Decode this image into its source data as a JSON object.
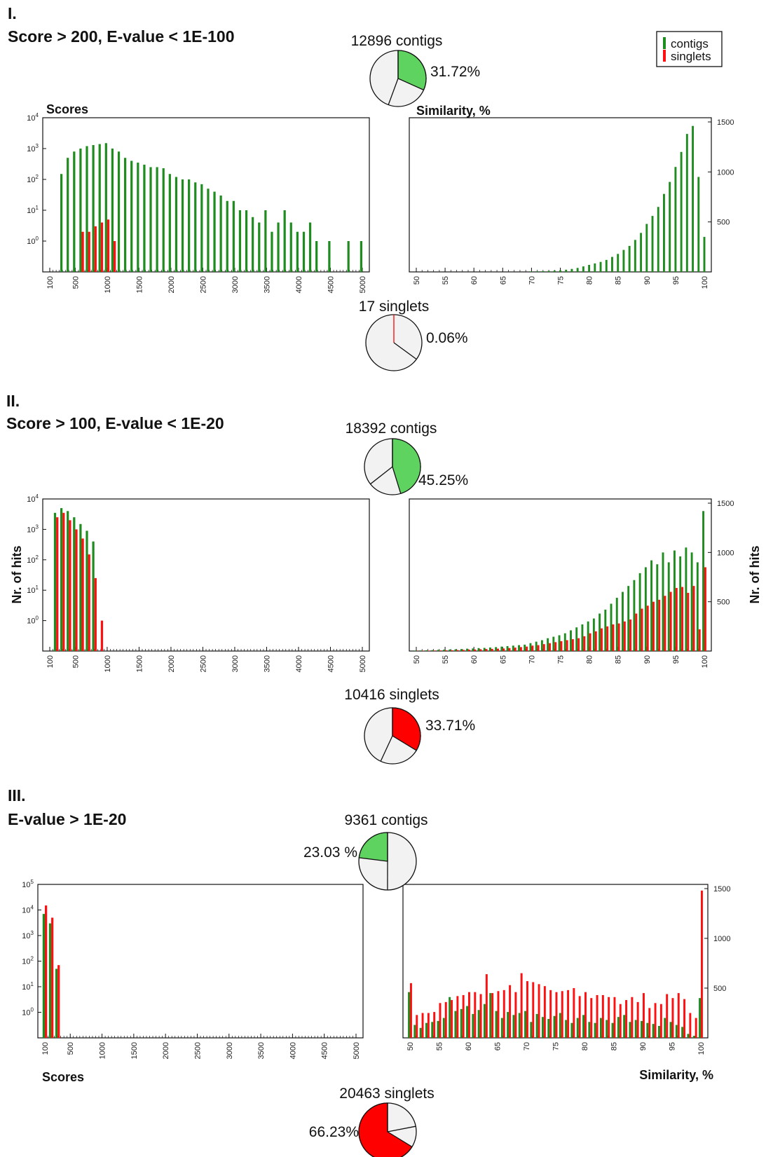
{
  "legend": {
    "items": [
      {
        "label": "contigs",
        "color": "#1f8c1f"
      },
      {
        "label": "singlets",
        "color": "#ff0f0f"
      }
    ]
  },
  "colors": {
    "contigs_bar": "#1f8c1f",
    "singlets_bar": "#ff0f0f",
    "pie_contigs": "#5fd35f",
    "pie_singlets": "#ff0000",
    "pie_rest": "#f2f2f2"
  },
  "sections": [
    {
      "id": "I",
      "label": "I.",
      "condition": "Score > 200, E-value < 1E-100",
      "contigs_pie": {
        "caption": "12896 contigs",
        "percent": 31.72,
        "label": "31.72%"
      },
      "singlets_pie": {
        "caption": "17 singlets",
        "percent": 0.06,
        "label": "0.06%"
      }
    },
    {
      "id": "II",
      "label": "II.",
      "condition": "Score > 100, E-value < 1E-20",
      "contigs_pie": {
        "caption": "18392 contigs",
        "percent": 45.25,
        "label": "45.25%"
      },
      "singlets_pie": {
        "caption": "10416 singlets",
        "percent": 33.71,
        "label": "33.71%"
      }
    },
    {
      "id": "III",
      "label": "III.",
      "condition": "E-value > 1E-20",
      "contigs_pie": {
        "caption": "9361 contigs",
        "percent": 23.03,
        "label": "23.03 %"
      },
      "singlets_pie": {
        "caption": "20463 singlets",
        "percent": 66.23,
        "label": "66.23%"
      }
    }
  ],
  "chart_data": [
    {
      "id": "I-scores",
      "type": "bar",
      "title": "Scores",
      "xlabel": "",
      "ylabel": "",
      "yscale": "log",
      "ylim": [
        0.1,
        10000
      ],
      "xlim": [
        100,
        5000
      ],
      "xticks": [
        "100",
        "500",
        "1000",
        "1500",
        "2000",
        "2500",
        "3000",
        "3500",
        "4000",
        "4500",
        "5000"
      ],
      "ytick_exps": [
        "4",
        "3",
        "2",
        "1",
        "0"
      ],
      "series": [
        {
          "name": "contigs",
          "x": [
            300,
            400,
            500,
            600,
            700,
            800,
            900,
            1000,
            1100,
            1200,
            1300,
            1400,
            1500,
            1600,
            1700,
            1800,
            1900,
            2000,
            2100,
            2200,
            2300,
            2400,
            2500,
            2600,
            2700,
            2800,
            2900,
            3000,
            3100,
            3200,
            3300,
            3400,
            3500,
            3600,
            3700,
            3800,
            3900,
            4000,
            4100,
            4200,
            4300,
            4500,
            4800,
            5000
          ],
          "values": [
            150,
            500,
            800,
            1000,
            1200,
            1300,
            1400,
            1500,
            1000,
            800,
            500,
            400,
            350,
            300,
            250,
            250,
            230,
            150,
            120,
            100,
            100,
            80,
            70,
            50,
            40,
            30,
            20,
            20,
            10,
            10,
            6,
            4,
            10,
            2,
            4,
            10,
            4,
            2,
            2,
            4,
            1,
            1,
            1,
            1
          ]
        },
        {
          "name": "singlets",
          "x": [
            600,
            700,
            800,
            900,
            1000,
            1100
          ],
          "values": [
            2,
            2,
            3,
            4,
            5,
            1
          ]
        }
      ]
    },
    {
      "id": "I-similarity",
      "type": "bar",
      "title": "Similarity, %",
      "xlabel": "",
      "ylabel": "",
      "yscale": "linear",
      "ylim": [
        0,
        1500
      ],
      "xlim": [
        50,
        100
      ],
      "xticks": [
        "50",
        "55",
        "60",
        "65",
        "70",
        "75",
        "80",
        "85",
        "90",
        "95",
        "100"
      ],
      "yticks": [
        "500",
        "1000",
        "1500"
      ],
      "series": [
        {
          "name": "contigs",
          "x": [
            70,
            71,
            72,
            73,
            74,
            75,
            76,
            77,
            78,
            79,
            80,
            81,
            82,
            83,
            84,
            85,
            86,
            87,
            88,
            89,
            90,
            91,
            92,
            93,
            94,
            95,
            96,
            97,
            98,
            99,
            100
          ],
          "values": [
            4,
            6,
            8,
            10,
            14,
            16,
            22,
            30,
            40,
            55,
            70,
            85,
            100,
            120,
            150,
            180,
            220,
            260,
            320,
            390,
            480,
            560,
            650,
            780,
            900,
            1050,
            1200,
            1380,
            1460,
            950,
            350
          ]
        },
        {
          "name": "singlets",
          "x": [],
          "values": []
        }
      ]
    },
    {
      "id": "II-scores",
      "type": "bar",
      "title": "",
      "xlabel": "",
      "ylabel": "Nr. of hits",
      "yscale": "log",
      "ylim": [
        0.1,
        10000
      ],
      "xlim": [
        100,
        5000
      ],
      "xticks": [
        "100",
        "500",
        "1000",
        "1500",
        "2000",
        "2500",
        "3000",
        "3500",
        "4000",
        "4500",
        "5000"
      ],
      "ytick_exps": [
        "4",
        "3",
        "2",
        "1",
        "0"
      ],
      "series": [
        {
          "name": "contigs",
          "x": [
            200,
            300,
            400,
            500,
            600,
            700,
            800
          ],
          "values": [
            3500,
            5000,
            4000,
            2500,
            1500,
            900,
            400
          ]
        },
        {
          "name": "singlets",
          "x": [
            200,
            300,
            400,
            500,
            600,
            700,
            800,
            900
          ],
          "values": [
            2500,
            3500,
            2000,
            1000,
            500,
            150,
            25,
            1
          ]
        }
      ]
    },
    {
      "id": "II-similarity",
      "type": "bar",
      "title": "",
      "xlabel": "",
      "ylabel": "Nr. of hits",
      "yscale": "linear",
      "ylim": [
        0,
        1500
      ],
      "xlim": [
        50,
        100
      ],
      "xticks": [
        "50",
        "55",
        "60",
        "65",
        "70",
        "75",
        "80",
        "85",
        "90",
        "95",
        "100"
      ],
      "yticks": [
        "500",
        "1000",
        "1500"
      ],
      "series": [
        {
          "name": "contigs",
          "x": [
            50,
            51,
            52,
            53,
            54,
            55,
            56,
            57,
            58,
            59,
            60,
            61,
            62,
            63,
            64,
            65,
            66,
            67,
            68,
            69,
            70,
            71,
            72,
            73,
            74,
            75,
            76,
            77,
            78,
            79,
            80,
            81,
            82,
            83,
            84,
            85,
            86,
            87,
            88,
            89,
            90,
            91,
            92,
            93,
            94,
            95,
            96,
            97,
            98,
            99,
            100
          ],
          "values": [
            5,
            6,
            8,
            10,
            12,
            14,
            16,
            18,
            20,
            24,
            26,
            30,
            32,
            36,
            40,
            45,
            50,
            55,
            60,
            65,
            80,
            95,
            110,
            130,
            145,
            160,
            180,
            210,
            240,
            270,
            300,
            330,
            380,
            420,
            480,
            540,
            600,
            660,
            720,
            790,
            850,
            920,
            880,
            1000,
            900,
            1020,
            960,
            1050,
            1000,
            900,
            1420
          ]
        },
        {
          "name": "singlets",
          "x": [
            50,
            51,
            52,
            53,
            54,
            55,
            56,
            57,
            58,
            59,
            60,
            61,
            62,
            63,
            64,
            65,
            66,
            67,
            68,
            69,
            70,
            71,
            72,
            73,
            74,
            75,
            76,
            77,
            78,
            79,
            80,
            81,
            82,
            83,
            84,
            85,
            86,
            87,
            88,
            89,
            90,
            91,
            92,
            93,
            94,
            95,
            96,
            97,
            98,
            99,
            100
          ],
          "values": [
            2,
            3,
            4,
            5,
            6,
            7,
            8,
            10,
            12,
            14,
            16,
            18,
            20,
            22,
            24,
            26,
            30,
            35,
            40,
            45,
            55,
            60,
            70,
            80,
            90,
            100,
            110,
            120,
            130,
            150,
            180,
            200,
            230,
            250,
            270,
            280,
            300,
            320,
            380,
            430,
            460,
            500,
            520,
            560,
            600,
            640,
            650,
            590,
            660,
            220,
            850
          ]
        }
      ]
    },
    {
      "id": "III-scores",
      "type": "bar",
      "title": "",
      "xlabel": "Scores",
      "ylabel": "",
      "yscale": "log",
      "ylim": [
        0.1,
        100000
      ],
      "xlim": [
        100,
        5000
      ],
      "xticks": [
        "100",
        "500",
        "1000",
        "1500",
        "2000",
        "2500",
        "3000",
        "3500",
        "4000",
        "4500",
        "5000"
      ],
      "ytick_exps": [
        "5",
        "4",
        "3",
        "2",
        "1",
        "0"
      ],
      "series": [
        {
          "name": "contigs",
          "x": [
            100,
            200,
            300
          ],
          "values": [
            7000,
            3000,
            50
          ]
        },
        {
          "name": "singlets",
          "x": [
            100,
            200,
            300
          ],
          "values": [
            15000,
            5000,
            70
          ]
        }
      ]
    },
    {
      "id": "III-similarity",
      "type": "bar",
      "title": "",
      "xlabel": "Similarity, %",
      "ylabel": "",
      "yscale": "linear",
      "ylim": [
        0,
        1500
      ],
      "xlim": [
        50,
        100
      ],
      "xticks": [
        "50",
        "55",
        "60",
        "65",
        "70",
        "75",
        "80",
        "85",
        "90",
        "95",
        "100"
      ],
      "yticks": [
        "500",
        "1000",
        "1500"
      ],
      "series": [
        {
          "name": "contigs",
          "x": [
            50,
            51,
            52,
            53,
            54,
            55,
            56,
            57,
            58,
            59,
            60,
            61,
            62,
            63,
            64,
            65,
            66,
            67,
            68,
            69,
            70,
            71,
            72,
            73,
            74,
            75,
            76,
            77,
            78,
            79,
            80,
            81,
            82,
            83,
            84,
            85,
            86,
            87,
            88,
            89,
            90,
            91,
            92,
            93,
            94,
            95,
            96,
            97,
            98,
            99,
            100
          ],
          "values": [
            460,
            130,
            100,
            150,
            160,
            170,
            200,
            410,
            270,
            290,
            320,
            240,
            280,
            340,
            450,
            270,
            200,
            260,
            230,
            250,
            270,
            160,
            240,
            210,
            190,
            220,
            250,
            180,
            150,
            200,
            230,
            160,
            150,
            200,
            180,
            150,
            210,
            230,
            160,
            180,
            170,
            150,
            140,
            120,
            200,
            160,
            130,
            110,
            40,
            20,
            400
          ]
        },
        {
          "name": "singlets",
          "x": [
            50,
            51,
            52,
            53,
            54,
            55,
            56,
            57,
            58,
            59,
            60,
            61,
            62,
            63,
            64,
            65,
            66,
            67,
            68,
            69,
            70,
            71,
            72,
            73,
            74,
            75,
            76,
            77,
            78,
            79,
            80,
            81,
            82,
            83,
            84,
            85,
            86,
            87,
            88,
            89,
            90,
            91,
            92,
            93,
            94,
            95,
            96,
            97,
            98,
            99,
            100
          ],
          "values": [
            550,
            230,
            250,
            250,
            260,
            350,
            360,
            380,
            420,
            430,
            460,
            460,
            440,
            640,
            450,
            470,
            480,
            530,
            460,
            650,
            570,
            560,
            540,
            520,
            480,
            460,
            470,
            480,
            500,
            420,
            460,
            400,
            430,
            430,
            410,
            410,
            340,
            380,
            410,
            360,
            450,
            300,
            350,
            340,
            440,
            400,
            450,
            390,
            250,
            200,
            1480
          ]
        }
      ]
    }
  ]
}
